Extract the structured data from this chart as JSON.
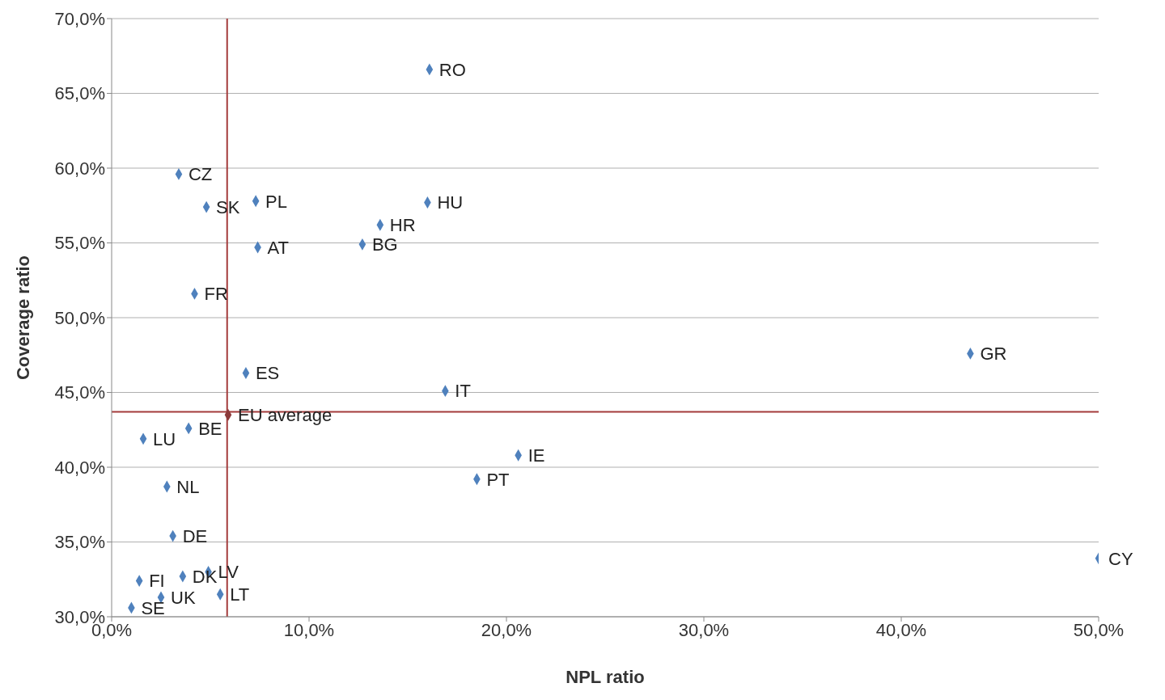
{
  "chart_data": {
    "type": "scatter",
    "xlabel": "NPL ratio",
    "ylabel": "Coverage ratio",
    "xlim": [
      0,
      50
    ],
    "ylim": [
      30,
      70
    ],
    "xticks": [
      {
        "value": 0,
        "label": "0,0%"
      },
      {
        "value": 10,
        "label": "10,0%"
      },
      {
        "value": 20,
        "label": "20,0%"
      },
      {
        "value": 30,
        "label": "30,0%"
      },
      {
        "value": 40,
        "label": "40,0%"
      },
      {
        "value": 50,
        "label": "50,0%"
      }
    ],
    "yticks": [
      {
        "value": 30,
        "label": "30,0%"
      },
      {
        "value": 35,
        "label": "35,0%"
      },
      {
        "value": 40,
        "label": "40,0%"
      },
      {
        "value": 45,
        "label": "45,0%"
      },
      {
        "value": 50,
        "label": "50,0%"
      },
      {
        "value": 55,
        "label": "55,0%"
      },
      {
        "value": 60,
        "label": "60,0%"
      },
      {
        "value": 65,
        "label": "65,0%"
      },
      {
        "value": 70,
        "label": "70,0%"
      }
    ],
    "grid": "y",
    "marker": "diamond",
    "series": [
      {
        "color": "#4f81bd",
        "x": [
          16.1,
          3.4,
          4.8,
          7.3,
          16.0,
          13.6,
          12.7,
          7.4,
          4.2,
          6.8,
          16.9,
          43.5,
          3.9,
          1.6,
          20.6,
          18.5,
          2.8,
          3.1,
          50.0,
          4.9,
          3.6,
          1.4,
          5.5,
          2.5,
          1.0
        ],
        "values": [
          66.6,
          59.6,
          57.4,
          57.8,
          57.7,
          56.2,
          54.9,
          54.7,
          51.6,
          46.3,
          45.1,
          47.6,
          42.6,
          41.9,
          40.8,
          39.2,
          38.7,
          35.4,
          33.9,
          33.0,
          32.7,
          32.4,
          31.5,
          31.3,
          30.6
        ]
      },
      {
        "color": "#8b3a3a",
        "x": [
          5.9
        ],
        "values": [
          43.5
        ]
      }
    ],
    "ref_lines": [
      {
        "axis": "x",
        "value": 5.85,
        "color": "#a33b3b"
      },
      {
        "axis": "y",
        "value": 43.7,
        "color": "#a33b3b"
      }
    ],
    "annotations": [
      {
        "text": "RO",
        "x": 16.1,
        "y": 66.6
      },
      {
        "text": "CZ",
        "x": 3.4,
        "y": 59.6
      },
      {
        "text": "SK",
        "x": 4.8,
        "y": 57.4
      },
      {
        "text": "PL",
        "x": 7.3,
        "y": 57.8
      },
      {
        "text": "HU",
        "x": 16.0,
        "y": 57.7
      },
      {
        "text": "HR",
        "x": 13.6,
        "y": 56.2
      },
      {
        "text": "BG",
        "x": 12.7,
        "y": 54.9
      },
      {
        "text": "AT",
        "x": 7.4,
        "y": 54.7
      },
      {
        "text": "FR",
        "x": 4.2,
        "y": 51.6
      },
      {
        "text": "ES",
        "x": 6.8,
        "y": 46.3
      },
      {
        "text": "IT",
        "x": 16.9,
        "y": 45.1
      },
      {
        "text": "GR",
        "x": 43.5,
        "y": 47.6
      },
      {
        "text": "EU average",
        "x": 5.9,
        "y": 43.5
      },
      {
        "text": "BE",
        "x": 3.9,
        "y": 42.6
      },
      {
        "text": "LU",
        "x": 1.6,
        "y": 41.9
      },
      {
        "text": "IE",
        "x": 20.6,
        "y": 40.8
      },
      {
        "text": "PT",
        "x": 18.5,
        "y": 39.2
      },
      {
        "text": "NL",
        "x": 2.8,
        "y": 38.7
      },
      {
        "text": "DE",
        "x": 3.1,
        "y": 35.4
      },
      {
        "text": "CY",
        "x": 50.0,
        "y": 33.9
      },
      {
        "text": "LV",
        "x": 4.9,
        "y": 33.0
      },
      {
        "text": "DK",
        "x": 3.6,
        "y": 32.7
      },
      {
        "text": "FI",
        "x": 1.4,
        "y": 32.4
      },
      {
        "text": "LT",
        "x": 5.5,
        "y": 31.5
      },
      {
        "text": "UK",
        "x": 2.5,
        "y": 31.3
      },
      {
        "text": "SE",
        "x": 1.0,
        "y": 30.6
      }
    ]
  }
}
